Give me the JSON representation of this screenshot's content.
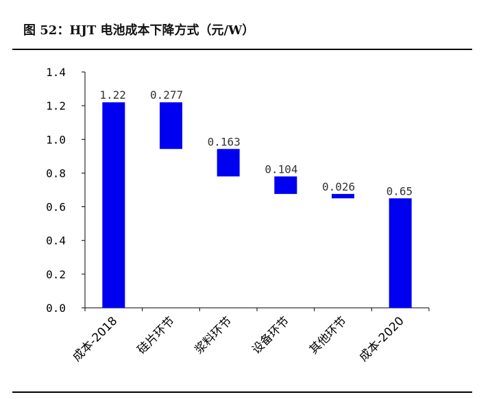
{
  "figure": {
    "title": "图 52：HJT 电池成本下降方式（元/W）"
  },
  "chart_data": {
    "type": "waterfall",
    "categories": [
      "成本-2018",
      "硅片环节",
      "浆料环节",
      "设备环节",
      "其他环节",
      "成本-2020"
    ],
    "values": [
      1.22,
      0.277,
      0.163,
      0.104,
      0.026,
      0.65
    ],
    "data_labels": [
      "1.22",
      "0.277",
      "0.163",
      "0.104",
      "0.026",
      "0.65"
    ],
    "bar_kinds": [
      "total",
      "decrease",
      "decrease",
      "decrease",
      "decrease",
      "total"
    ],
    "ylim": [
      0,
      1.4
    ],
    "yticks": [
      "0.0",
      "0.2",
      "0.4",
      "0.6",
      "0.8",
      "1.0",
      "1.2",
      "1.4"
    ],
    "grid": false,
    "legend": "none",
    "bar_color": "#0000F0"
  }
}
